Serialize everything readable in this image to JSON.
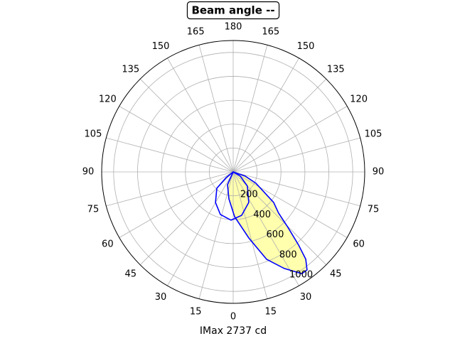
{
  "chart_data": {
    "type": "polar",
    "title": "Beam angle --",
    "xlabel": "IMax 2737 cd",
    "rlim": [
      0,
      1100
    ],
    "rticks": [
      200,
      400,
      600,
      800,
      1000
    ],
    "thetaticks": [
      0,
      15,
      30,
      45,
      60,
      75,
      90,
      105,
      120,
      135,
      150,
      165,
      180,
      {
        "value": -165,
        "label": "165"
      },
      {
        "value": -150,
        "label": "150"
      },
      {
        "value": -135,
        "label": "135"
      },
      {
        "value": -120,
        "label": "120"
      },
      {
        "value": -105,
        "label": "105"
      },
      {
        "value": -90,
        "label": "90"
      },
      {
        "value": -75,
        "label": "75"
      },
      {
        "value": -60,
        "label": "60"
      },
      {
        "value": -45,
        "label": "45"
      },
      {
        "value": -30,
        "label": "30"
      },
      {
        "value": -15,
        "label": "15"
      }
    ],
    "grid": true,
    "series": [
      {
        "color": "#0000ff",
        "fill": "#ffff99",
        "theta": [
          80,
          70.6,
          63.4,
          53,
          47.8,
          44.6,
          41.8,
          39.7,
          37,
          34,
          27.9,
          20.9,
          13.3,
          1.8,
          -9,
          -24,
          -40
        ],
        "values": [
          0,
          107,
          213,
          424,
          512,
          653,
          822,
          950,
          1027,
          1027,
          914,
          783,
          568,
          375,
          229,
          117,
          0
        ]
      },
      {
        "color": "#0000ff",
        "theta": [
          -70,
          -51,
          -45,
          -30,
          -16.7,
          -2.5,
          11,
          27,
          45,
          59,
          75
        ],
        "values": [
          0,
          76,
          193,
          296,
          372,
          404,
          370,
          287,
          168,
          70,
          0
        ]
      }
    ]
  }
}
